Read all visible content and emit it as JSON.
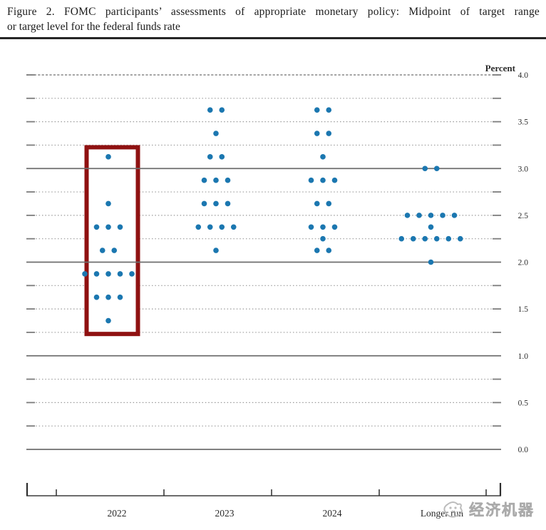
{
  "title": {
    "line1": "Figure 2.  FOMC participants’ assessments of appropriate monetary policy:  Midpoint of target range",
    "line2": "or target level for the federal funds rate"
  },
  "watermark": {
    "text": "经济机器"
  },
  "chart_data": {
    "type": "scatter",
    "variant": "fomc-dot-plot",
    "title": "Figure 2. FOMC participants’ assessments of appropriate monetary policy: Midpoint of target range or target level for the federal funds rate",
    "xlabel": "",
    "ylabel": "Percent",
    "ylim": [
      0.0,
      4.0
    ],
    "grid": {
      "solid_at": [
        0.0,
        1.0,
        2.0,
        3.0
      ],
      "top_dashed_at": 4.0,
      "dotted_step": 0.25,
      "legend_position": "none"
    },
    "y_ticks": [
      {
        "value": 4.0,
        "label": "4.0"
      },
      {
        "value": 3.5,
        "label": "3.5"
      },
      {
        "value": 3.0,
        "label": "3.0"
      },
      {
        "value": 2.5,
        "label": "2.5"
      },
      {
        "value": 2.0,
        "label": "2.0"
      },
      {
        "value": 1.5,
        "label": "1.5"
      },
      {
        "value": 1.0,
        "label": "1.0"
      },
      {
        "value": 0.5,
        "label": "0.5"
      },
      {
        "value": 0.0,
        "label": "0.0"
      }
    ],
    "categories": [
      "2022",
      "2023",
      "2024",
      "Longer run"
    ],
    "series": [
      {
        "category": "2022",
        "dots": [
          {
            "rate": 3.125,
            "count": 1
          },
          {
            "rate": 2.625,
            "count": 1
          },
          {
            "rate": 2.375,
            "count": 3
          },
          {
            "rate": 2.125,
            "count": 2
          },
          {
            "rate": 1.875,
            "count": 5
          },
          {
            "rate": 1.625,
            "count": 3
          },
          {
            "rate": 1.375,
            "count": 1
          }
        ]
      },
      {
        "category": "2023",
        "dots": [
          {
            "rate": 3.625,
            "count": 2
          },
          {
            "rate": 3.375,
            "count": 1
          },
          {
            "rate": 3.125,
            "count": 2
          },
          {
            "rate": 2.875,
            "count": 3
          },
          {
            "rate": 2.625,
            "count": 3
          },
          {
            "rate": 2.375,
            "count": 4
          },
          {
            "rate": 2.125,
            "count": 1
          }
        ]
      },
      {
        "category": "2024",
        "dots": [
          {
            "rate": 3.625,
            "count": 2
          },
          {
            "rate": 3.375,
            "count": 2
          },
          {
            "rate": 3.125,
            "count": 1
          },
          {
            "rate": 2.875,
            "count": 3
          },
          {
            "rate": 2.625,
            "count": 2
          },
          {
            "rate": 2.375,
            "count": 3
          },
          {
            "rate": 2.25,
            "count": 1
          },
          {
            "rate": 2.125,
            "count": 2
          }
        ]
      },
      {
        "category": "Longer run",
        "dots": [
          {
            "rate": 3.0,
            "count": 2
          },
          {
            "rate": 2.5,
            "count": 5
          },
          {
            "rate": 2.375,
            "count": 1
          },
          {
            "rate": 2.25,
            "count": 6
          },
          {
            "rate": 2.0,
            "count": 1
          }
        ]
      }
    ],
    "highlight": {
      "category": "2022",
      "rate_top": 3.25,
      "rate_bottom": 1.21
    },
    "colors": {
      "dot": "#1b77b0",
      "highlight_box": "#8f1111",
      "solid_line": "#6e6e6e",
      "top_line": "#878787",
      "dotted_line": "#9a9a9a",
      "axis": "#3d3d3d",
      "text": "#2b2b2b"
    }
  }
}
